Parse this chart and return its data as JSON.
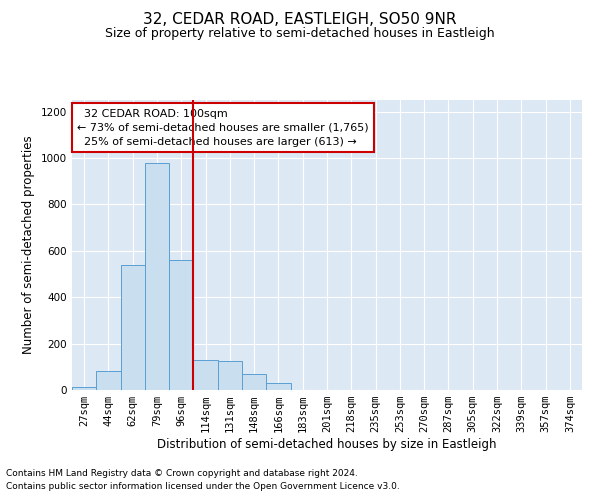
{
  "title": "32, CEDAR ROAD, EASTLEIGH, SO50 9NR",
  "subtitle": "Size of property relative to semi-detached houses in Eastleigh",
  "xlabel": "Distribution of semi-detached houses by size in Eastleigh",
  "ylabel": "Number of semi-detached properties",
  "footnote1": "Contains HM Land Registry data © Crown copyright and database right 2024.",
  "footnote2": "Contains public sector information licensed under the Open Government Licence v3.0.",
  "bin_labels": [
    "27sqm",
    "44sqm",
    "62sqm",
    "79sqm",
    "96sqm",
    "114sqm",
    "131sqm",
    "148sqm",
    "166sqm",
    "183sqm",
    "201sqm",
    "218sqm",
    "235sqm",
    "253sqm",
    "270sqm",
    "287sqm",
    "305sqm",
    "322sqm",
    "339sqm",
    "357sqm",
    "374sqm"
  ],
  "bar_heights": [
    15,
    80,
    540,
    980,
    560,
    130,
    125,
    70,
    30,
    0,
    0,
    0,
    0,
    0,
    0,
    0,
    0,
    0,
    0,
    0,
    0
  ],
  "bar_color": "#c9dff0",
  "bar_edge_color": "#5a9fd4",
  "vline_bin_index": 4.5,
  "property_label": "32 CEDAR ROAD: 100sqm",
  "pct_smaller": 73,
  "pct_smaller_count": "1,765",
  "pct_larger": 25,
  "pct_larger_count": "613",
  "annotation_box_color": "#cc0000",
  "vline_color": "#cc0000",
  "ylim": [
    0,
    1250
  ],
  "yticks": [
    0,
    200,
    400,
    600,
    800,
    1000,
    1200
  ],
  "bg_color": "#dde8f5",
  "grid_color": "#ffffff",
  "title_fontsize": 11,
  "subtitle_fontsize": 9,
  "axis_label_fontsize": 8.5,
  "tick_fontsize": 7.5,
  "annotation_fontsize": 8
}
